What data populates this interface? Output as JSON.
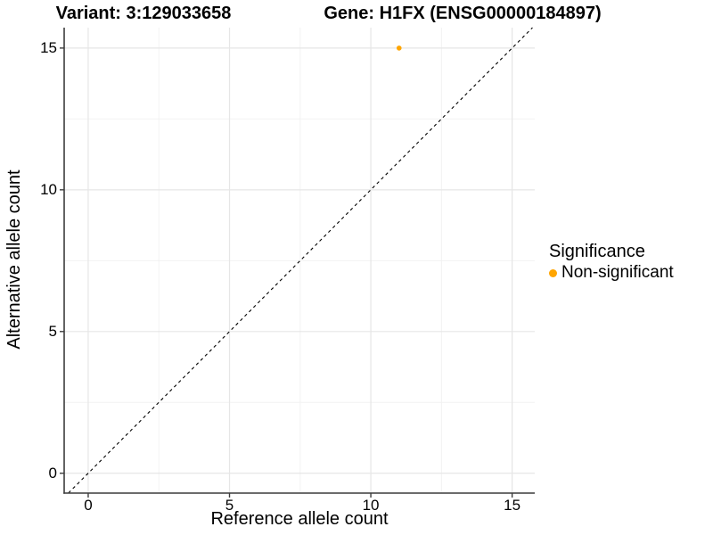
{
  "chart_data": {
    "type": "scatter",
    "titles": {
      "left": "Variant: 3:129033658",
      "right": "Gene: H1FX (ENSG00000184897)"
    },
    "xlabel": "Reference allele count",
    "ylabel": "Alternative allele count",
    "xlim": [
      -0.85,
      15.8
    ],
    "ylim": [
      -0.7,
      15.72
    ],
    "xticks": [
      0,
      5,
      10,
      15
    ],
    "yticks": [
      0,
      5,
      10,
      15
    ],
    "minor_ticks_x": [
      2.5,
      7.5,
      12.5
    ],
    "minor_ticks_y": [
      2.5,
      7.5,
      12.5
    ],
    "grid": "major+minor",
    "identity_line": {
      "slope": 1,
      "intercept": 0,
      "style": "dashed"
    },
    "points": [
      {
        "x": 11,
        "y": 15,
        "series": "Non-significant"
      }
    ],
    "legend": {
      "title": "Significance",
      "position": "right",
      "items": [
        {
          "label": "Non-significant",
          "color": "#FFA500"
        }
      ]
    },
    "colors": {
      "point": "#FFA500",
      "grid_major": "#E6E6E6",
      "grid_minor": "#F2F2F2",
      "axis": "#3C3C3C",
      "identity_line": "#000000",
      "text": "#000000",
      "background": "#FFFFFF"
    }
  }
}
